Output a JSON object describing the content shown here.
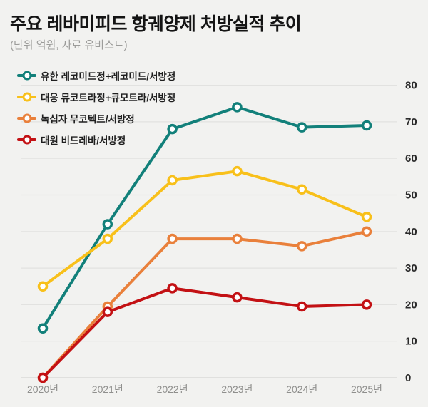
{
  "page": {
    "title": "주요 레바미피드 항궤양제 처방실적 추이",
    "subtitle": "(단위 억원, 자료 유비스트)"
  },
  "colors": {
    "background": "#f2f2f0",
    "grid": "#e2e2e0",
    "grid_zero": "#d6d6d4",
    "title_text": "#141414",
    "subtitle_text": "#9c9c9a",
    "x_tick_text": "#8f8f8d",
    "y_tick_text": "#2b2b2b",
    "legend_text": "#1f1f1f",
    "marker_fill": "#ffffff"
  },
  "chart_data": {
    "type": "line",
    "title": "주요 레바미피드 항궤양제 처방실적 추이",
    "subtitle": "(단위 억원, 자료 유비스트)",
    "xlabel": "",
    "ylabel": "",
    "categories": [
      "2020년",
      "2021년",
      "2022년",
      "2023년",
      "2024년",
      "2025년"
    ],
    "series": [
      {
        "name": "유한 레코미드정+레코미드/서방정",
        "color": "#12807a",
        "values": [
          13.5,
          42,
          68,
          74,
          68.5,
          69
        ]
      },
      {
        "name": "대웅 뮤코트라정+큐모트라/서방정",
        "color": "#f8c01a",
        "values": [
          25,
          38,
          54,
          56.5,
          51.5,
          44
        ]
      },
      {
        "name": "녹십자 무코텍트/서방정",
        "color": "#e9803b",
        "values": [
          0,
          19.5,
          38,
          38,
          36,
          40
        ]
      },
      {
        "name": "대원 비드레바/서방정",
        "color": "#c31114",
        "values": [
          0,
          18,
          24.5,
          22,
          19.5,
          20
        ]
      }
    ],
    "ylim": [
      0,
      80
    ],
    "y_ticks": [
      0,
      10,
      20,
      30,
      40,
      50,
      60,
      70,
      80
    ],
    "grid": "horizontal",
    "y_axis_side": "right",
    "legend_position": "top-left"
  }
}
